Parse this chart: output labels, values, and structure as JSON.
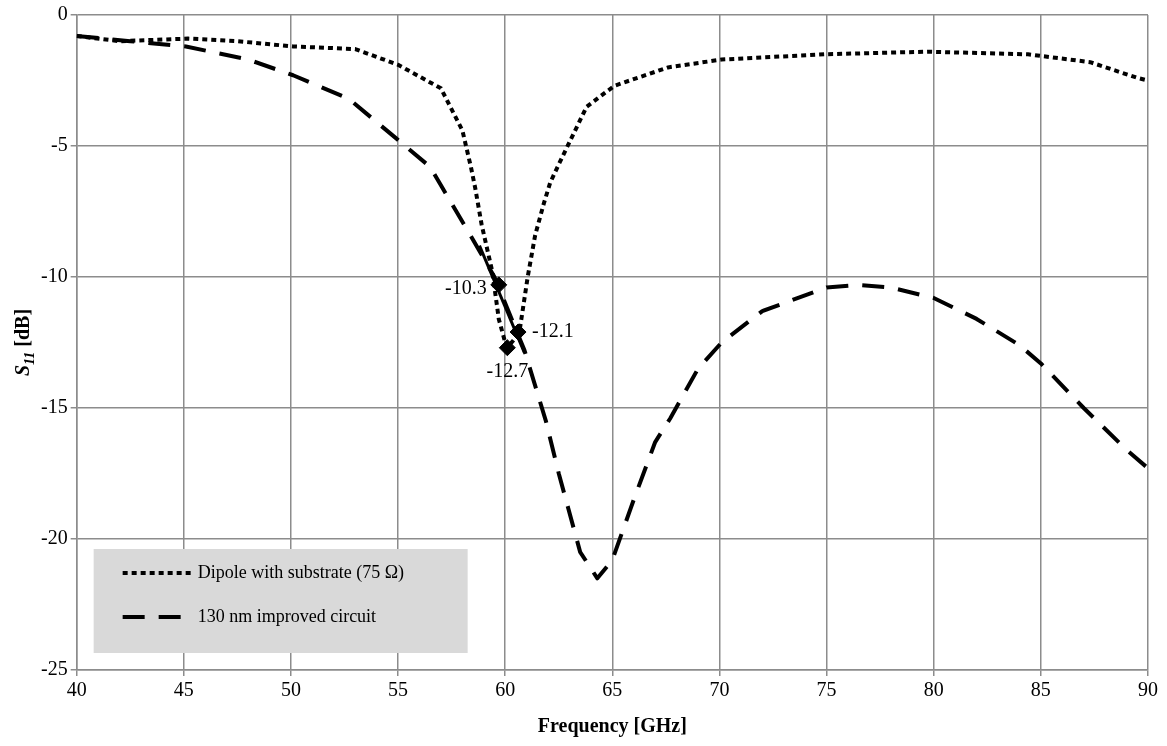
{
  "chart_data": {
    "type": "line",
    "xlabel": "Frequency [GHz]",
    "ylabel": "S$_{11}$ [dB]",
    "xlim": [
      40,
      90
    ],
    "xticks": [
      40,
      45,
      50,
      55,
      60,
      65,
      70,
      75,
      80,
      85,
      90
    ],
    "ylim": [
      -25,
      0
    ],
    "yticks": [
      -25,
      -20,
      -15,
      -10,
      -5,
      0
    ],
    "grid": true,
    "legend": "bottom left",
    "series": [
      {
        "name": "Dipole with substrate (75 Ω)",
        "color": "#000000",
        "line_style": "dotted",
        "marker": "none",
        "x": [
          40,
          42,
          45.2,
          47.5,
          50.1,
          53,
          55,
          57,
          58,
          58.4,
          58.6,
          58.9,
          59.4,
          59.7,
          60,
          60.1,
          60.4,
          60.7,
          61.05,
          61.4,
          61.8,
          62.1,
          62.5,
          63.8,
          65.1,
          67.6,
          70.1,
          74.9,
          79.7,
          84.4,
          87.3,
          89.5,
          90
        ],
        "values": [
          -0.8,
          -1,
          -0.9,
          -1,
          -1.2,
          -1.3,
          -1.9,
          -2.8,
          -4.4,
          -5.8,
          -6.6,
          -8,
          -9.8,
          -11.6,
          -12.5,
          -12.7,
          -12.4,
          -11.9,
          -10,
          -8.4,
          -7.2,
          -6.4,
          -5.7,
          -3.5,
          -2.7,
          -2,
          -1.7,
          -1.5,
          -1.4,
          -1.5,
          -1.8,
          -2.4,
          -2.5
        ]
      },
      {
        "name": "130 nm improved circuit",
        "color": "#000000",
        "line_style": "dashed",
        "marker": "none",
        "x": [
          40,
          42.5,
          45.1,
          48,
          50.1,
          52.7,
          54.9,
          56.5,
          57,
          58.3,
          59.5,
          60.9,
          61.9,
          62.5,
          63.5,
          64.3,
          65,
          66,
          67,
          67.7,
          69,
          70.1,
          72,
          75,
          76.5,
          78,
          80,
          82,
          84,
          85,
          87,
          89,
          90
        ],
        "values": [
          -0.8,
          -1,
          -1.2,
          -1.7,
          -2.3,
          -3.2,
          -4.7,
          -5.8,
          -6.5,
          -8.3,
          -10,
          -12.8,
          -15.5,
          -17.5,
          -20.5,
          -21.5,
          -20.8,
          -18.5,
          -16.3,
          -15.4,
          -13.5,
          -12.5,
          -11.3,
          -10.4,
          -10.3,
          -10.4,
          -10.8,
          -11.6,
          -12.6,
          -13.3,
          -15,
          -16.6,
          -17.3
        ]
      },
      {
        "type": "line",
        "color": "#000000",
        "line_style": "solid",
        "marker": "none",
        "x": [
          58.8,
          60.9
        ],
        "values": [
          -8.8,
          -12.9
        ]
      },
      {
        "type": "scatter",
        "color": "#000000",
        "marker": "diamond",
        "x": [
          59.7,
          60.1,
          60.6
        ],
        "values": [
          -10.3,
          -12.7,
          -12.1
        ],
        "value_labels": [
          "-10.3",
          "-12.7",
          "-12.1"
        ]
      }
    ]
  }
}
